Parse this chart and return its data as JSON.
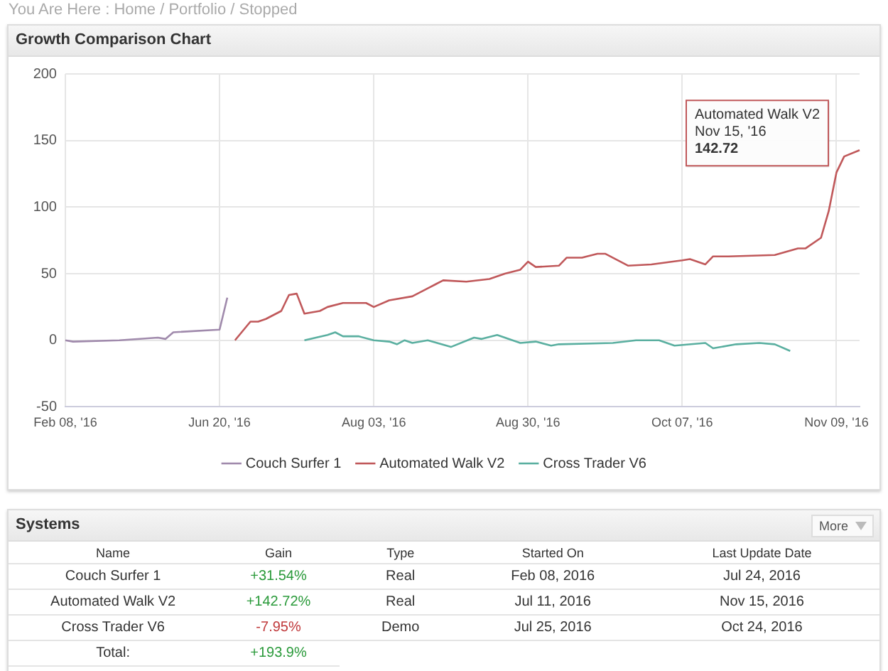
{
  "chart_data": [
    {
      "type": "line",
      "title": "Growth Comparison Chart",
      "categories": [
        "Feb 08, '16",
        null,
        null,
        null,
        null,
        null,
        null,
        null,
        null,
        null,
        null,
        null,
        null,
        null,
        null,
        null,
        null,
        null,
        null,
        null,
        "Jun 20, '16",
        null,
        null,
        null,
        null,
        null,
        null,
        null,
        null,
        null,
        null,
        null,
        null,
        null,
        null,
        null,
        null,
        null,
        null,
        null,
        "Aug 03, '16",
        null,
        null,
        null,
        null,
        null,
        null,
        null,
        null,
        null,
        null,
        null,
        null,
        null,
        null,
        null,
        null,
        null,
        null,
        null,
        "Aug 30, '16",
        null,
        null,
        null,
        null,
        null,
        null,
        null,
        null,
        null,
        null,
        null,
        null,
        null,
        null,
        null,
        null,
        null,
        null,
        null,
        "Oct 07, '16",
        null,
        null,
        null,
        null,
        null,
        null,
        null,
        null,
        null,
        null,
        null,
        null,
        null,
        null,
        null,
        null,
        null,
        null,
        null,
        "Nov 09, '16",
        null,
        null,
        null
      ],
      "series": [
        {
          "name": "Couch Surfer 1",
          "color": "#a08aac",
          "values": [
            0,
            -1,
            null,
            null,
            null,
            null,
            null,
            0,
            null,
            null,
            null,
            null,
            2,
            1,
            6,
            null,
            null,
            null,
            null,
            null,
            8,
            32,
            null,
            null,
            null,
            null,
            null,
            null,
            null,
            null,
            null,
            null,
            null,
            null,
            null,
            null,
            null,
            null,
            null,
            null,
            null,
            null,
            null,
            null,
            null,
            null,
            null,
            null,
            null,
            null,
            null,
            null,
            null,
            null,
            null,
            null,
            null,
            null,
            null,
            null,
            null,
            null,
            null,
            null,
            null,
            null,
            null,
            null,
            null,
            null,
            null,
            null,
            null,
            null,
            null,
            null,
            null,
            null,
            null,
            null,
            null,
            null,
            null,
            null,
            null,
            null,
            null,
            null,
            null,
            null,
            null,
            null,
            null,
            null,
            null,
            null,
            null,
            null,
            null,
            null,
            null,
            null,
            null,
            null
          ]
        },
        {
          "name": "Automated Walk V2",
          "color": "#c0585a",
          "values": [
            null,
            null,
            null,
            null,
            null,
            null,
            null,
            null,
            null,
            null,
            null,
            null,
            null,
            null,
            null,
            null,
            null,
            null,
            null,
            null,
            null,
            null,
            0,
            null,
            14,
            14,
            16,
            null,
            22,
            34,
            35,
            20,
            null,
            22,
            25,
            null,
            28,
            null,
            null,
            28,
            25,
            null,
            30,
            null,
            null,
            33,
            null,
            39,
            42,
            45,
            null,
            null,
            44,
            null,
            null,
            46,
            null,
            50,
            null,
            53,
            59,
            55,
            null,
            null,
            56,
            62,
            null,
            62,
            null,
            65,
            65,
            null,
            null,
            56,
            null,
            null,
            57,
            null,
            null,
            null,
            60,
            61,
            null,
            57,
            63,
            null,
            63,
            null,
            null,
            null,
            null,
            null,
            64,
            null,
            null,
            69,
            69,
            null,
            77,
            97,
            126,
            138,
            null,
            142.72
          ]
        },
        {
          "name": "Cross Trader V6",
          "color": "#5aafa0",
          "values": [
            null,
            null,
            null,
            null,
            null,
            null,
            null,
            null,
            null,
            null,
            null,
            null,
            null,
            null,
            null,
            null,
            null,
            null,
            null,
            null,
            null,
            null,
            null,
            null,
            null,
            null,
            null,
            null,
            null,
            null,
            null,
            0,
            null,
            null,
            4,
            6,
            3,
            null,
            3,
            null,
            0,
            null,
            -1,
            -3,
            0,
            -2,
            null,
            0,
            null,
            null,
            -5,
            null,
            null,
            2,
            1,
            null,
            4,
            null,
            null,
            -2,
            null,
            -1,
            null,
            -4,
            -3,
            null,
            null,
            null,
            null,
            null,
            null,
            -2,
            null,
            null,
            0,
            null,
            null,
            0,
            null,
            -4,
            null,
            null,
            null,
            -2,
            -6,
            null,
            null,
            -3,
            null,
            null,
            -2,
            null,
            -3,
            null,
            -8,
            null,
            null,
            null,
            null,
            null,
            null,
            null,
            null,
            null
          ]
        }
      ],
      "ylim": [
        -50,
        200
      ],
      "yticks": [
        -50,
        0,
        50,
        100,
        150,
        200
      ],
      "grid": true,
      "legend": "bottom",
      "marker": "none",
      "annotations": [
        "You Are Here : Home / Portfolio / Stopped",
        "Automated Walk V2\nNov 15, '16\n142.72"
      ]
    },
    {
      "type": "other",
      "title": "Systems",
      "categories": [
        "Name",
        "Gain",
        "Type",
        "Started On",
        "Last Update Date"
      ],
      "cell_labels": [
        [
          "Couch Surfer 1",
          "+31.54%",
          "Real",
          "Feb 08, 2016",
          "Jul 24, 2016"
        ],
        [
          "Automated Walk V2",
          "+142.72%",
          "Real",
          "Jul 11, 2016",
          "Nov 15, 2016"
        ],
        [
          "Cross Trader V6",
          "-7.95%",
          "Demo",
          "Jul 25, 2016",
          "Oct 24, 2016"
        ],
        [
          "Total:",
          "+193.9%",
          null,
          null,
          null
        ]
      ],
      "annotations": [
        "More"
      ]
    }
  ]
}
